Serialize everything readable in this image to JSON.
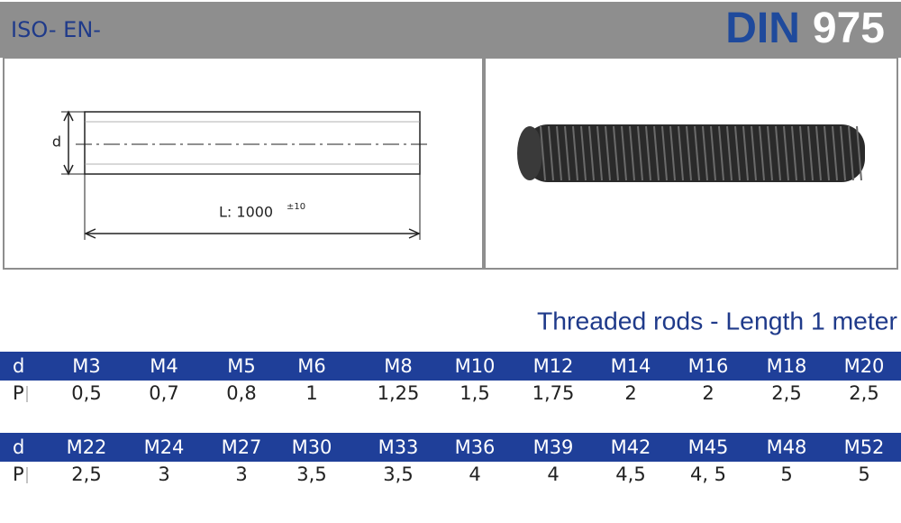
{
  "header": {
    "standard": "ISO- EN-",
    "din_label": "DIN",
    "din_number": "975"
  },
  "drawing": {
    "diameter_label": "d",
    "length_label": "L: 1000",
    "tolerance": "±10"
  },
  "subtitle": "Threaded rods - Length 1 meter",
  "tables": [
    {
      "rows": [
        [
          "d",
          "M3",
          "M4",
          "M5",
          "M6",
          "M8",
          "M10",
          "M12",
          "M14",
          "M16",
          "M18",
          "M20"
        ],
        [
          "P",
          "0,5",
          "0,7",
          "0,8",
          "1",
          "1,25",
          "1,5",
          "1,75",
          "2",
          "2",
          "2,5",
          "2,5"
        ]
      ]
    },
    {
      "rows": [
        [
          "d",
          "M22",
          "M24",
          "M27",
          "M30",
          "M33",
          "M36",
          "M39",
          "M42",
          "M45",
          "M48",
          "M52"
        ],
        [
          "P",
          "2,5",
          "3",
          "3",
          "3,5",
          "3,5",
          "4",
          "4",
          "4,5",
          "4, 5",
          "5",
          "5"
        ]
      ]
    }
  ]
}
